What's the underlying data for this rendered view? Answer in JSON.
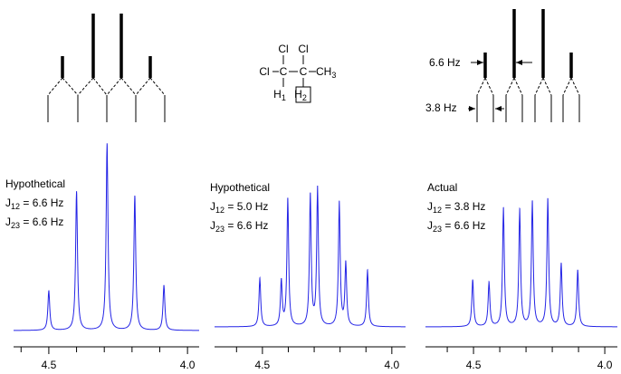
{
  "chart_data": [
    {
      "type": "spectrum",
      "color": "#2424e6",
      "x": [
        4.5,
        4.4,
        4.29,
        4.19,
        4.085
      ],
      "values": [
        45,
        157,
        211,
        152,
        51
      ],
      "xlim": [
        4.627,
        3.958
      ],
      "ylim": [
        0,
        220
      ],
      "xticks": [
        4.5,
        {
          "value": 4.0,
          "label": "4.0"
        }
      ],
      "minor_xticks": [
        4.6,
        4.4,
        4.3,
        4.2,
        4.1
      ],
      "annotations": [
        "Hypothetical",
        "J12 = 6.6 Hz",
        "J23 = 6.6 Hz"
      ]
    },
    {
      "type": "spectrum",
      "color": "#2424e6",
      "x": [
        4.51,
        4.427,
        4.402,
        4.315,
        4.287,
        4.203,
        4.178,
        4.094
      ],
      "values": [
        55,
        51,
        144,
        148,
        156,
        140,
        71,
        64
      ],
      "xlim": [
        4.685,
        3.947
      ],
      "ylim": [
        0,
        220
      ],
      "xticks": [
        4.5,
        {
          "value": 4.0,
          "label": "4.0"
        }
      ],
      "minor_xticks": [
        4.6,
        4.4,
        4.3,
        4.2,
        4.1
      ],
      "annotations": [
        "Hypothetical",
        "J12 = 5.0 Hz",
        "J23 = 6.6 Hz"
      ]
    },
    {
      "type": "spectrum",
      "color": "#2424e6",
      "x": [
        4.503,
        4.441,
        4.386,
        4.324,
        4.276,
        4.217,
        4.166,
        4.103
      ],
      "values": [
        53,
        50,
        134,
        132,
        141,
        144,
        71,
        64
      ],
      "xlim": [
        4.683,
        3.952
      ],
      "ylim": [
        0,
        220
      ],
      "xticks": [
        4.5,
        {
          "value": 4.0,
          "label": "4.0"
        }
      ],
      "minor_xticks": [
        4.6,
        4.4,
        4.3,
        4.2,
        4.1
      ],
      "annotations": [
        "Actual",
        "J12 = 3.8 Hz",
        "J23 = 6.6 Hz"
      ]
    }
  ],
  "splitting_labels": [
    "6.6 Hz",
    "3.8 Hz"
  ],
  "molecule": [
    "Cl",
    "Cl",
    "Cl",
    "C",
    "C",
    "CH3",
    "H1",
    "H2"
  ]
}
